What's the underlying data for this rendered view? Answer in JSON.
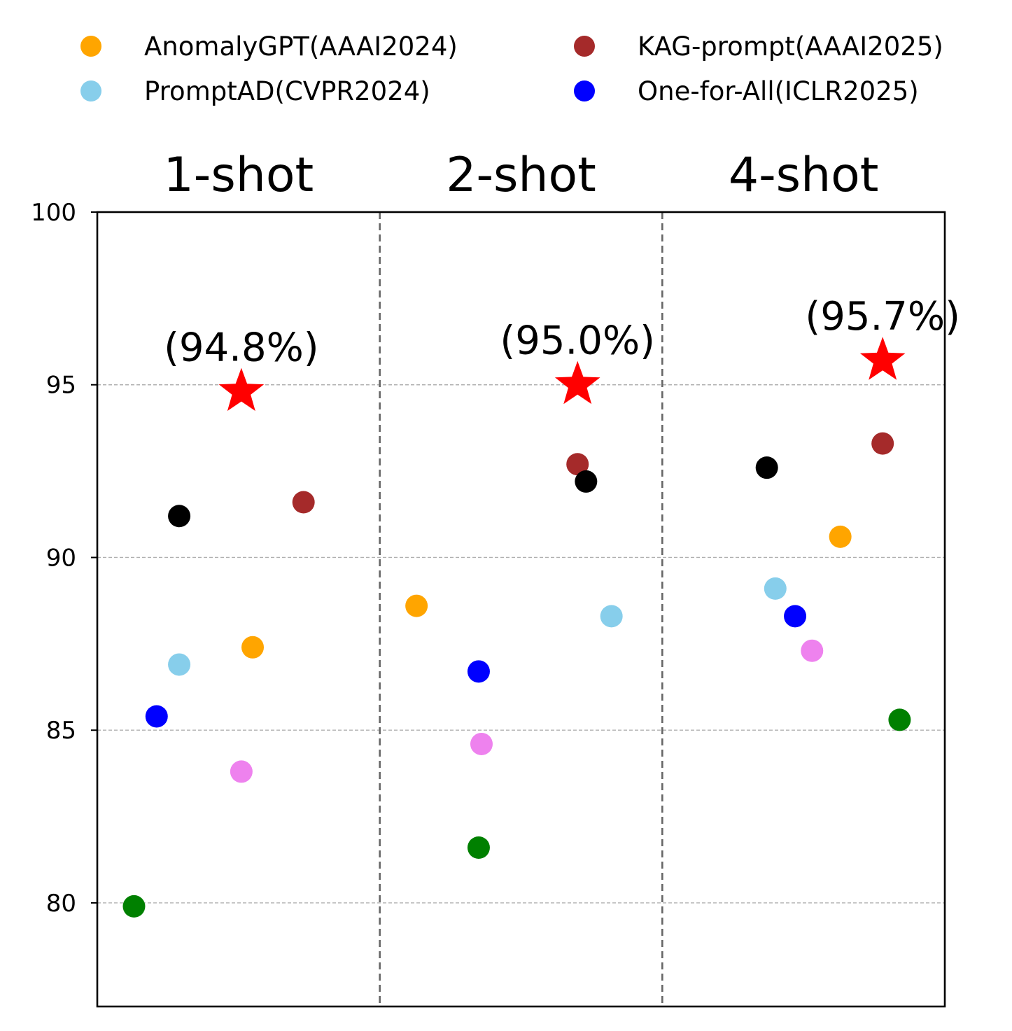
{
  "chart_data": {
    "type": "scatter",
    "groups": [
      "1-shot",
      "2-shot",
      "4-shot"
    ],
    "yticks": [
      80,
      85,
      90,
      95,
      100
    ],
    "ylim": [
      77,
      100
    ],
    "grid": "y dashed",
    "legend": {
      "placement": "top"
    },
    "legend_entries": [
      {
        "label": "AnomalyGPT(AAAI2024)",
        "color": "#FFA500"
      },
      {
        "label": "PromptAD(CVPR2024)",
        "color": "#87CEEB"
      },
      {
        "label": "KAG-prompt(AAAI2025)",
        "color": "#A52A2A"
      },
      {
        "label": "One-for-All(ICLR2025)",
        "color": "#0000FF"
      }
    ],
    "series": [
      {
        "name": "AnomalyGPT(AAAI2024)",
        "color": "#FFA500",
        "points": [
          {
            "group": 0,
            "offset": 0.05,
            "y": 87.4
          },
          {
            "group": 1,
            "offset": -0.37,
            "y": 88.6
          },
          {
            "group": 2,
            "offset": 0.13,
            "y": 90.6
          }
        ]
      },
      {
        "name": "PromptAD(CVPR2024)",
        "color": "#87CEEB",
        "points": [
          {
            "group": 0,
            "offset": -0.21,
            "y": 86.9
          },
          {
            "group": 1,
            "offset": 0.32,
            "y": 88.3
          },
          {
            "group": 2,
            "offset": -0.1,
            "y": 89.1
          }
        ]
      },
      {
        "name": "KAG-prompt(AAAI2025)",
        "color": "#A52A2A",
        "points": [
          {
            "group": 0,
            "offset": 0.23,
            "y": 91.6
          },
          {
            "group": 1,
            "offset": 0.2,
            "y": 92.7
          },
          {
            "group": 2,
            "offset": 0.28,
            "y": 93.3
          }
        ]
      },
      {
        "name": "One-for-All(ICLR2025)",
        "color": "#0000FF",
        "points": [
          {
            "group": 0,
            "offset": -0.29,
            "y": 85.4
          },
          {
            "group": 1,
            "offset": -0.15,
            "y": 86.7
          },
          {
            "group": 2,
            "offset": -0.03,
            "y": 88.3
          }
        ]
      },
      {
        "name": "",
        "color": "#000000",
        "points": [
          {
            "group": 0,
            "offset": -0.21,
            "y": 91.2
          },
          {
            "group": 1,
            "offset": 0.23,
            "y": 92.2
          },
          {
            "group": 2,
            "offset": -0.13,
            "y": 92.6
          }
        ]
      },
      {
        "name": "",
        "color": "#EE82EE",
        "points": [
          {
            "group": 0,
            "offset": 0.01,
            "y": 83.8
          },
          {
            "group": 1,
            "offset": -0.14,
            "y": 84.6
          },
          {
            "group": 2,
            "offset": 0.03,
            "y": 87.3
          }
        ]
      },
      {
        "name": "",
        "color": "#008000",
        "points": [
          {
            "group": 0,
            "offset": -0.37,
            "y": 79.9
          },
          {
            "group": 1,
            "offset": -0.15,
            "y": 81.6
          },
          {
            "group": 2,
            "offset": 0.34,
            "y": 85.3
          }
        ]
      }
    ],
    "highlight": {
      "marker": "star",
      "color": "#FF0000",
      "points": [
        {
          "group": 0,
          "offset": 0.01,
          "y": 94.8,
          "label": "(94.8%)"
        },
        {
          "group": 1,
          "offset": 0.2,
          "y": 95.0,
          "label": "(95.0%)"
        },
        {
          "group": 2,
          "offset": 0.28,
          "y": 95.7,
          "label": "(95.7%)"
        }
      ]
    }
  }
}
